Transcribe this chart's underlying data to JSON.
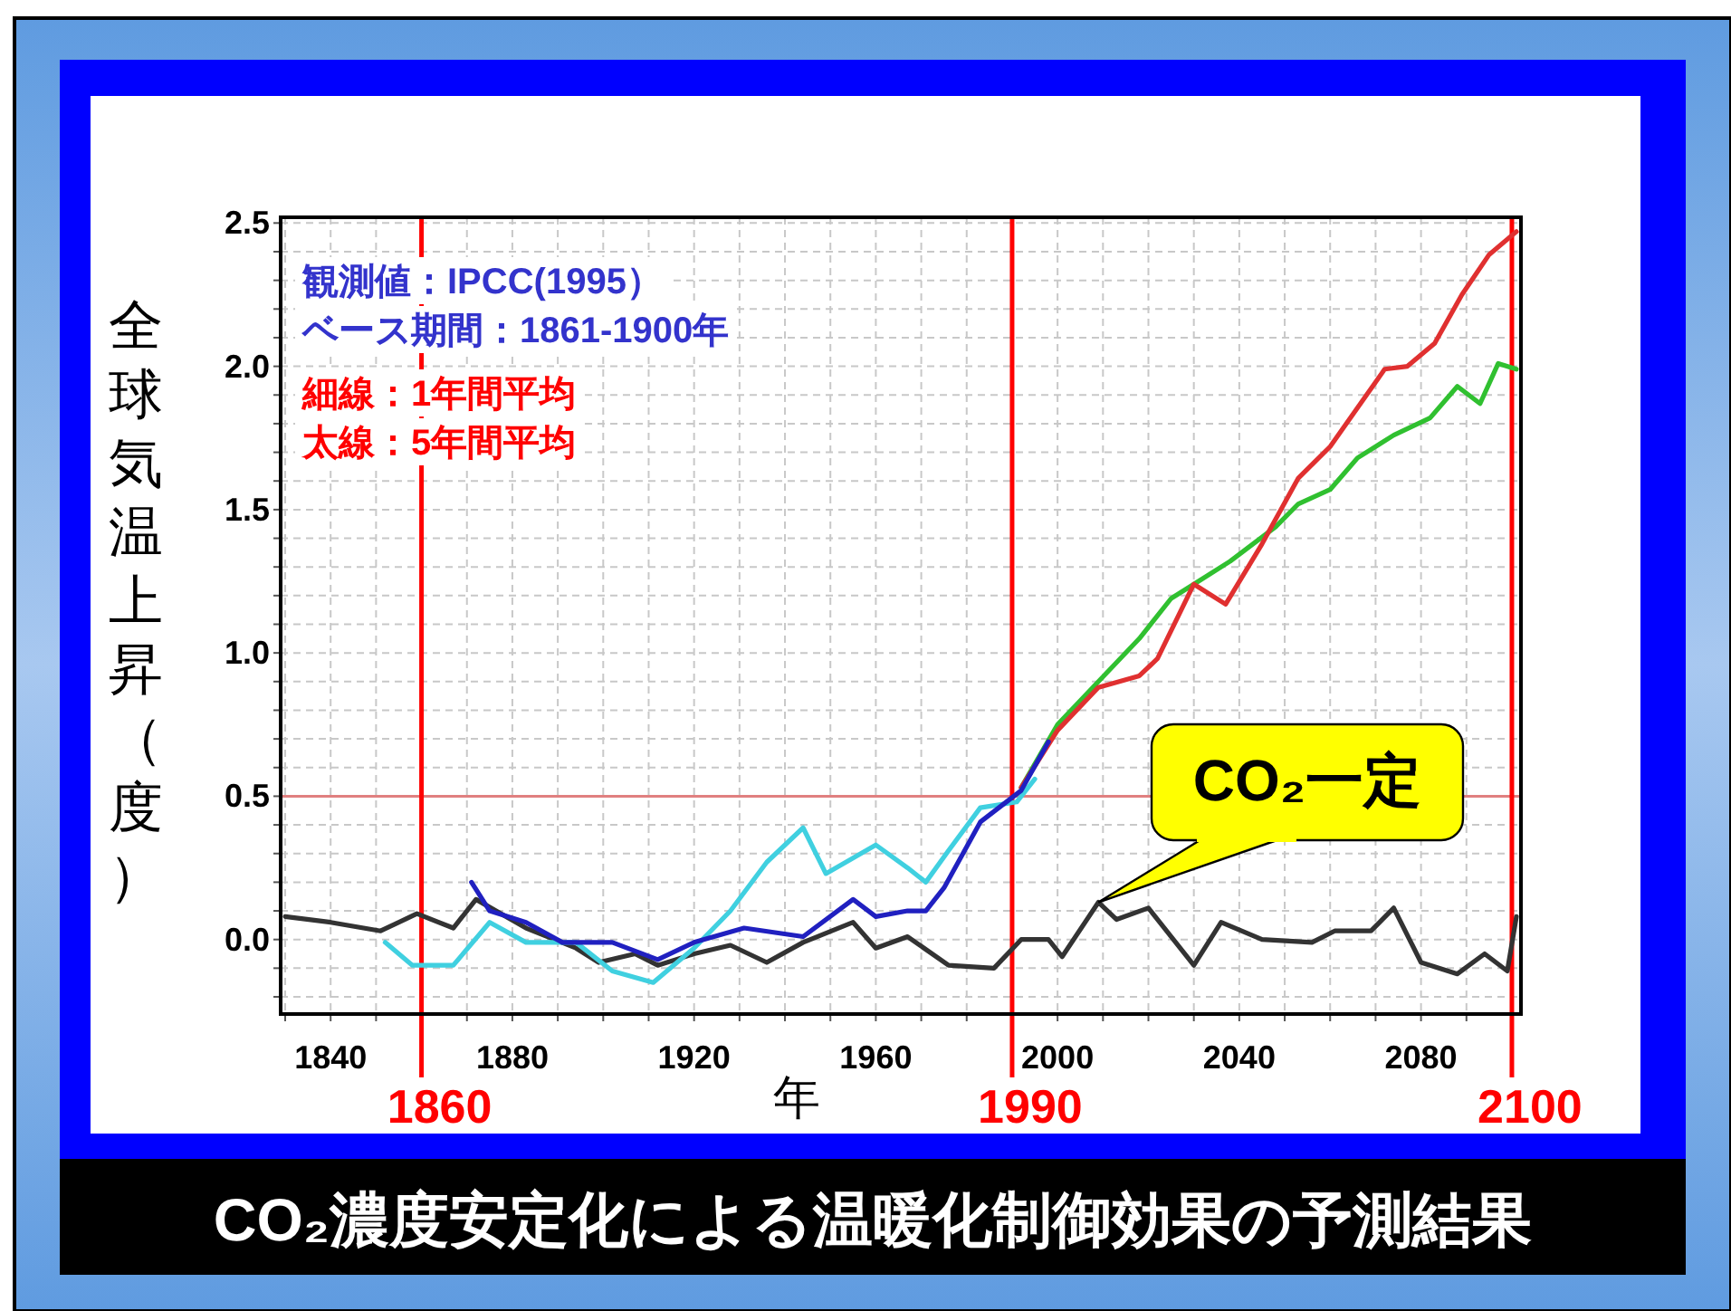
{
  "chart_data": {
    "type": "line",
    "title": "CO₂濃度安定化による温暖化制御効果の予測結果",
    "xlabel": "年",
    "ylabel": "全球気温上昇（度）",
    "annotations": [
      "観測値：IPCC(1995）",
      "ベース期間：1861-1900年",
      "細線：1年間平均",
      "太線：5年間平均",
      {
        "text": "CO₂一定",
        "x": 2009,
        "y": 0.13
      }
    ],
    "xlim": [
      1829,
      2102
    ],
    "ylim": [
      -0.26,
      2.52
    ],
    "xticks": [
      {
        "value": 1830,
        "label": null
      },
      1840,
      {
        "value": 1850,
        "label": null
      },
      {
        "value": 1860,
        "label": null
      },
      {
        "value": 1870,
        "label": null
      },
      1880,
      {
        "value": 1890,
        "label": null
      },
      {
        "value": 1900,
        "label": null
      },
      {
        "value": 1910,
        "label": null
      },
      1920,
      {
        "value": 1930,
        "label": null
      },
      {
        "value": 1940,
        "label": null
      },
      {
        "value": 1950,
        "label": null
      },
      1960,
      {
        "value": 1970,
        "label": null
      },
      {
        "value": 1980,
        "label": null
      },
      {
        "value": 1990,
        "label": null
      },
      2000,
      {
        "value": 2010,
        "label": null
      },
      {
        "value": 2020,
        "label": null
      },
      {
        "value": 2030,
        "label": null
      },
      2040,
      {
        "value": 2050,
        "label": null
      },
      {
        "value": 2060,
        "label": null
      },
      {
        "value": 2070,
        "label": null
      },
      2080,
      {
        "value": 2090,
        "label": null
      },
      {
        "value": 2100,
        "label": null
      }
    ],
    "yticks": [
      {
        "value": -0.2,
        "label": null
      },
      {
        "value": -0.1,
        "label": null
      },
      {
        "value": 0,
        "label": "0.0"
      },
      {
        "value": 0.1,
        "label": null
      },
      {
        "value": 0.2,
        "label": null
      },
      {
        "value": 0.3,
        "label": null
      },
      {
        "value": 0.4,
        "label": null
      },
      0.5,
      {
        "value": 0.6,
        "label": null
      },
      {
        "value": 0.7,
        "label": null
      },
      {
        "value": 0.8,
        "label": null
      },
      {
        "value": 0.9,
        "label": null
      },
      {
        "value": 1,
        "label": "1.0"
      },
      {
        "value": 1.1,
        "label": null
      },
      {
        "value": 1.2,
        "label": null
      },
      {
        "value": 1.3,
        "label": null
      },
      {
        "value": 1.4,
        "label": null
      },
      1.5,
      {
        "value": 1.6,
        "label": null
      },
      {
        "value": 1.7,
        "label": null
      },
      {
        "value": 1.8,
        "label": null
      },
      {
        "value": 1.9,
        "label": null
      },
      {
        "value": 2,
        "label": "2.0"
      },
      {
        "value": 2.1,
        "label": null
      },
      {
        "value": 2.2,
        "label": null
      },
      {
        "value": 2.3,
        "label": null
      },
      {
        "value": 2.4,
        "label": null
      },
      2.5
    ],
    "grid": true,
    "line_style": "solid",
    "ref_lines": [
      {
        "axis": "y",
        "value": 0.5,
        "label": null,
        "color": "#e08080"
      },
      {
        "axis": "x",
        "value": 1860,
        "label": "1860",
        "color": "#ff0000"
      },
      {
        "axis": "x",
        "value": 1990,
        "label": "1990",
        "color": "#ff0000"
      },
      {
        "axis": "x",
        "value": 2100,
        "label": "2100",
        "color": "#ff0000"
      }
    ],
    "series": [
      {
        "color": "#333333",
        "x": [
          1830,
          1840,
          1851,
          1859,
          1867,
          1872,
          1883,
          1894,
          1899,
          1907,
          1912,
          1920,
          1928,
          1936,
          1944,
          1955,
          1960,
          1967,
          1976,
          1986,
          1992,
          1998,
          2001,
          2009,
          2013,
          2020,
          2030,
          2036,
          2045,
          2056,
          2061,
          2069,
          2074,
          2080,
          2088,
          2094,
          2099,
          2101
        ],
        "values": [
          0.08,
          0.06,
          0.03,
          0.09,
          0.04,
          0.14,
          0.04,
          -0.03,
          -0.08,
          -0.05,
          -0.09,
          -0.05,
          -0.02,
          -0.08,
          -0.01,
          0.06,
          -0.03,
          0.01,
          -0.09,
          -0.1,
          0.0,
          0.0,
          -0.06,
          0.13,
          0.07,
          0.11,
          -0.09,
          0.06,
          0.0,
          -0.01,
          0.03,
          0.03,
          0.11,
          -0.08,
          -0.12,
          -0.05,
          -0.11,
          0.08
        ]
      },
      {
        "color": "#40d0e0",
        "x": [
          1852,
          1858,
          1867,
          1875,
          1883,
          1894,
          1902,
          1911,
          1920,
          1928,
          1936,
          1944,
          1949,
          1960,
          1967,
          1971,
          1976,
          1983,
          1991,
          1995
        ],
        "values": [
          -0.01,
          -0.09,
          -0.09,
          0.06,
          -0.01,
          -0.01,
          -0.11,
          -0.15,
          -0.03,
          0.1,
          0.27,
          0.39,
          0.23,
          0.33,
          0.25,
          0.2,
          0.31,
          0.46,
          0.48,
          0.56
        ]
      },
      {
        "color": "#30c030",
        "x": [
          1992,
          2000,
          2009,
          2018,
          2025,
          2030,
          2038,
          2048,
          2053,
          2060,
          2066,
          2074,
          2082,
          2088,
          2093,
          2097,
          2101
        ],
        "values": [
          0.53,
          0.75,
          0.9,
          1.05,
          1.19,
          1.24,
          1.32,
          1.44,
          1.52,
          1.57,
          1.68,
          1.76,
          1.82,
          1.93,
          1.87,
          2.01,
          1.99
        ]
      },
      {
        "color": "#e03030",
        "x": [
          1992,
          2000,
          2009,
          2018,
          2022,
          2030,
          2037,
          2045,
          2053,
          2060,
          2072,
          2077,
          2083,
          2089,
          2095,
          2101
        ],
        "values": [
          0.53,
          0.73,
          0.88,
          0.92,
          0.98,
          1.24,
          1.17,
          1.38,
          1.61,
          1.72,
          1.99,
          2.0,
          2.08,
          2.25,
          2.39,
          2.47
        ]
      },
      {
        "color": "#2020c0",
        "x": [
          1871,
          1875,
          1883,
          1891,
          1902,
          1912,
          1920,
          1931,
          1944,
          1955,
          1960,
          1967,
          1971,
          1975,
          1983,
          1992,
          1998
        ],
        "values": [
          0.2,
          0.1,
          0.06,
          -0.01,
          -0.01,
          -0.07,
          -0.01,
          0.04,
          0.01,
          0.14,
          0.08,
          0.1,
          0.1,
          0.18,
          0.41,
          0.52,
          0.69
        ]
      }
    ]
  }
}
